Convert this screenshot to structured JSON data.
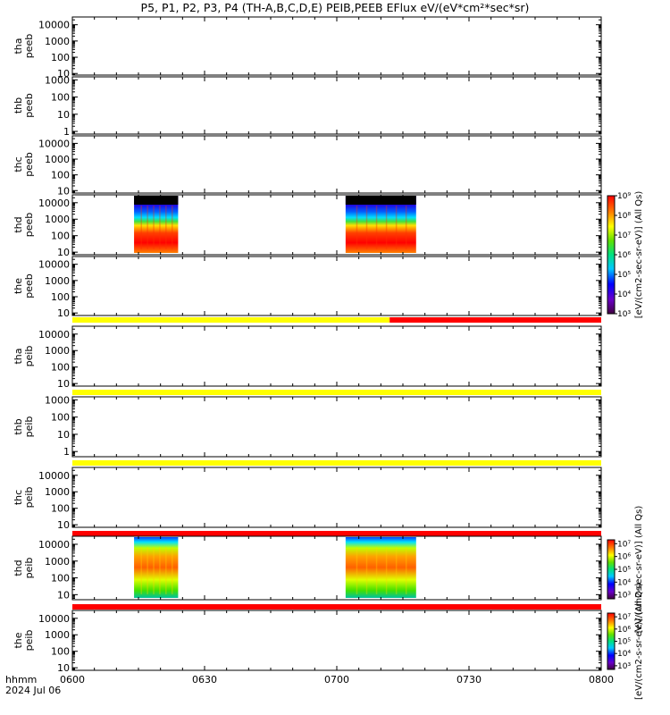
{
  "title": "P5, P1, P2, P3, P4 (TH-A,B,C,D,E) PEIB,PEEB EFlux eV/(eV*cm²*sec*sr)",
  "colors": {
    "axis": "#000000",
    "status_yellow": "#ffff00",
    "status_red": "#ff0000",
    "no_data_black": "#000000"
  },
  "chart_data": [
    {
      "type": "heatmap",
      "panel": "tha_peeb",
      "ylabel": [
        "tha",
        "peeb"
      ],
      "ylog": true,
      "ylim": [
        8,
        30000
      ],
      "yticks": [
        "10",
        "100",
        "1000",
        "10000"
      ],
      "has_data": false
    },
    {
      "type": "heatmap",
      "panel": "thb_peeb",
      "ylabel": [
        "thb",
        "peeb"
      ],
      "ylog": true,
      "ylim": [
        0.7,
        1500
      ],
      "yticks": [
        "1",
        "10",
        "100",
        "1000"
      ],
      "has_data": false
    },
    {
      "type": "heatmap",
      "panel": "thc_peeb",
      "ylabel": [
        "thc",
        "peeb"
      ],
      "ylog": true,
      "ylim": [
        7,
        30000
      ],
      "yticks": [
        "10",
        "100",
        "1000",
        "10000"
      ],
      "has_data": false
    },
    {
      "type": "heatmap",
      "panel": "thd_peeb",
      "ylabel": [
        "thd",
        "peeb"
      ],
      "ylog": true,
      "ylim": [
        7,
        30000
      ],
      "yticks": [
        "10",
        "100",
        "1000",
        "10000"
      ],
      "has_data": true,
      "data_intervals": [
        [
          "06:14",
          "06:24"
        ],
        [
          "07:02",
          "07:18"
        ]
      ],
      "colorbar": {
        "label": "[eV/(cm2-sec-sr-eV)] (All Qs)",
        "ticks": [
          "10³",
          "10⁴",
          "10⁵",
          "10⁶",
          "10⁷",
          "10⁸",
          "10⁹"
        ],
        "range": [
          1000,
          1000000000
        ]
      }
    },
    {
      "type": "heatmap",
      "panel": "the_peeb",
      "ylabel": [
        "the",
        "peeb"
      ],
      "ylog": true,
      "ylim": [
        7,
        30000
      ],
      "yticks": [
        "10",
        "100",
        "1000",
        "10000"
      ],
      "has_data": false,
      "status_bar": [
        {
          "color": "#ffff00",
          "from": "06:00",
          "to": "07:12"
        },
        {
          "color": "#ff0000",
          "from": "07:12",
          "to": "08:00"
        }
      ],
      "colorbar": {
        "label": "[eV/(cm2-sec-sr-eV)] (All Qs)",
        "ticks": [
          "10³",
          "10⁴",
          "10⁵",
          "10⁶",
          "10⁷",
          "10⁸",
          "10⁹"
        ],
        "range": [
          1000,
          1000000000
        ]
      }
    },
    {
      "type": "heatmap",
      "panel": "tha_peib",
      "ylabel": [
        "tha",
        "peib"
      ],
      "ylog": true,
      "ylim": [
        7,
        30000
      ],
      "yticks": [
        "10",
        "100",
        "1000",
        "10000"
      ],
      "has_data": false,
      "status_bar": [
        {
          "color": "#ffff00",
          "from": "06:00",
          "to": "08:00"
        }
      ]
    },
    {
      "type": "heatmap",
      "panel": "thb_peib",
      "ylabel": [
        "thb",
        "peib"
      ],
      "ylog": true,
      "ylim": [
        0.5,
        1500
      ],
      "yticks": [
        "1",
        "10",
        "100",
        "1000"
      ],
      "has_data": false,
      "status_bar": [
        {
          "color": "#ffff00",
          "from": "06:00",
          "to": "08:00"
        }
      ]
    },
    {
      "type": "heatmap",
      "panel": "thc_peib",
      "ylabel": [
        "thc",
        "peib"
      ],
      "ylog": true,
      "ylim": [
        7,
        30000
      ],
      "yticks": [
        "10",
        "100",
        "1000",
        "10000"
      ],
      "has_data": false,
      "status_bar": [
        {
          "color": "#ff0000",
          "from": "06:00",
          "to": "08:00"
        }
      ]
    },
    {
      "type": "heatmap",
      "panel": "thd_peib",
      "ylabel": [
        "thd",
        "peib"
      ],
      "ylog": true,
      "ylim": [
        5,
        30000
      ],
      "yticks": [
        "10",
        "100",
        "1000",
        "10000"
      ],
      "has_data": true,
      "data_intervals": [
        [
          "06:14",
          "06:24"
        ],
        [
          "07:02",
          "07:18"
        ]
      ],
      "status_bar": [
        {
          "color": "#ff0000",
          "from": "06:00",
          "to": "08:00"
        }
      ],
      "colorbar": {
        "label": "[eV/(cm2-sec-sr-eV)] (All Qs)",
        "ticks": [
          "10³",
          "10⁴",
          "10⁵",
          "10⁶",
          "10⁷"
        ],
        "range": [
          500,
          20000000
        ]
      }
    },
    {
      "type": "heatmap",
      "panel": "the_peib",
      "ylabel": [
        "the",
        "peib"
      ],
      "ylog": true,
      "ylim": [
        7,
        30000
      ],
      "yticks": [
        "10",
        "100",
        "1000",
        "10000"
      ],
      "has_data": false,
      "colorbar": {
        "label": "[eV/(cm2-s-sr-eV)] (All Qs)",
        "ticks": [
          "10³",
          "10⁴",
          "10⁵",
          "10⁶",
          "10⁷"
        ],
        "range": [
          500,
          20000000
        ]
      }
    }
  ],
  "time_axis": {
    "start": "06:00",
    "end": "08:00",
    "ticks": [
      "0600",
      "0630",
      "0700",
      "0730",
      "0800"
    ],
    "label": "hhmm",
    "date": "2024 Jul 06"
  }
}
